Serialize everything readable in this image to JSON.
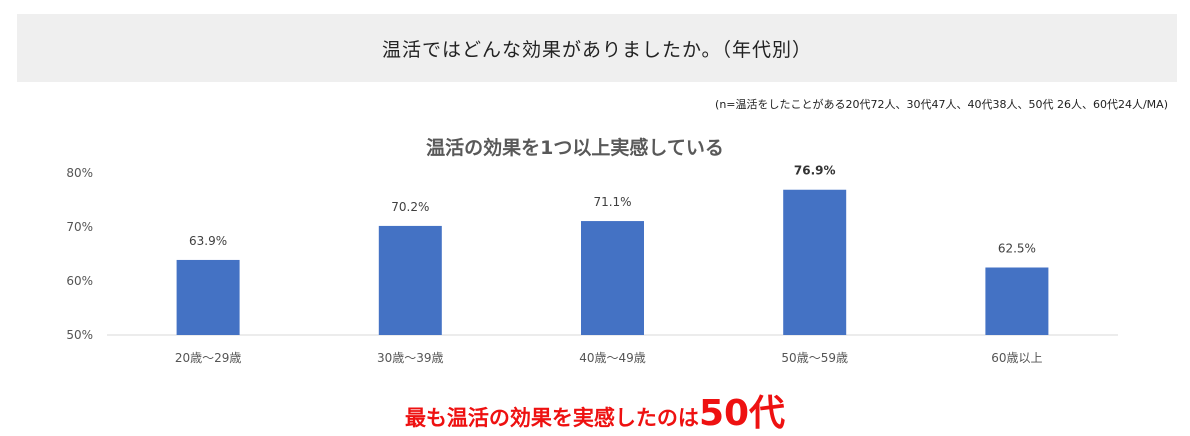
{
  "header": {
    "title": "温活ではどんな効果がありましたか。（年代別）"
  },
  "note": "(n=温活をしたことがある20代72人、30代47人、40代38人、50代 26人、60代24人/MA)",
  "chart_data": {
    "type": "bar",
    "title": "温活の効果を1つ以上実感している",
    "categories": [
      "20歳〜29歳",
      "30歳〜39歳",
      "40歳〜49歳",
      "50歳〜59歳",
      "60歳以上"
    ],
    "values": [
      63.9,
      70.2,
      71.1,
      76.9,
      62.5
    ],
    "value_labels": [
      "63.9%",
      "70.2%",
      "71.1%",
      "76.9%",
      "62.5%"
    ],
    "highlight_index": 3,
    "ylim": [
      50,
      80
    ],
    "yticks": [
      50,
      60,
      70,
      80
    ],
    "ytick_labels": [
      "50%",
      "60%",
      "70%",
      "80%"
    ],
    "xlabel": "",
    "ylabel": "",
    "grid": false,
    "bar_color": "#4472c4"
  },
  "conclusion": {
    "lead": "最も温活の効果を実感したのは",
    "emphasis": "50代"
  },
  "colors": {
    "accent": "#ee1111",
    "bar": "#4472c4",
    "header_bg": "#efefef"
  }
}
